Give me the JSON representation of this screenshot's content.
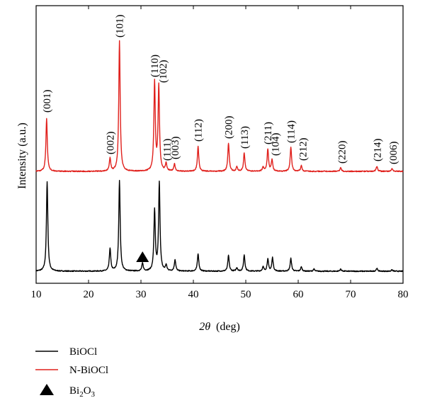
{
  "chart_data": {
    "type": "line",
    "xlabel_symbol": "2θ",
    "xlabel_unit": "(deg)",
    "ylabel": "Intensity (a.u.)",
    "xlim": [
      10,
      80
    ],
    "x_ticks": [
      10,
      20,
      30,
      40,
      50,
      60,
      70,
      80
    ],
    "colors": {
      "BiOCl": "#000000",
      "N-BiOCl": "#e0201c",
      "marker": "#000000"
    },
    "legend": {
      "placement": "below-chart",
      "entries": [
        {
          "name": "BiOCl",
          "type": "line",
          "color": "#000000"
        },
        {
          "name": "N-BiOCl",
          "type": "line",
          "color": "#e0201c"
        },
        {
          "name": "Bi",
          "sub": "2",
          "name_end": "O",
          "sub_end": "3",
          "type": "triangle",
          "color": "#000000"
        }
      ]
    },
    "series": [
      {
        "name": "BiOCl",
        "baseline": 0,
        "peaks": [
          {
            "x": 12.1,
            "h": 127
          },
          {
            "x": 24.1,
            "h": 32
          },
          {
            "x": 25.9,
            "h": 128
          },
          {
            "x": 30.3,
            "h": 11
          },
          {
            "x": 32.6,
            "h": 85
          },
          {
            "x": 33.5,
            "h": 124
          },
          {
            "x": 34.8,
            "h": 8
          },
          {
            "x": 36.5,
            "h": 16
          },
          {
            "x": 40.9,
            "h": 25
          },
          {
            "x": 46.7,
            "h": 22
          },
          {
            "x": 48.3,
            "h": 5
          },
          {
            "x": 49.7,
            "h": 23
          },
          {
            "x": 53.3,
            "h": 6
          },
          {
            "x": 54.2,
            "h": 17
          },
          {
            "x": 55.1,
            "h": 19
          },
          {
            "x": 58.6,
            "h": 18
          },
          {
            "x": 60.6,
            "h": 6
          },
          {
            "x": 63.0,
            "h": 3
          },
          {
            "x": 68.1,
            "h": 3
          },
          {
            "x": 75.0,
            "h": 4
          },
          {
            "x": 77.9,
            "h": 2
          }
        ]
      },
      {
        "name": "N-BiOCl",
        "baseline": 141,
        "peaks": [
          {
            "x": 12.0,
            "h": 74
          },
          {
            "x": 24.1,
            "h": 18
          },
          {
            "x": 25.9,
            "h": 184
          },
          {
            "x": 32.6,
            "h": 126
          },
          {
            "x": 33.4,
            "h": 120
          },
          {
            "x": 34.8,
            "h": 11
          },
          {
            "x": 36.4,
            "h": 10
          },
          {
            "x": 40.9,
            "h": 35
          },
          {
            "x": 46.7,
            "h": 40
          },
          {
            "x": 48.3,
            "h": 6
          },
          {
            "x": 49.7,
            "h": 26
          },
          {
            "x": 53.3,
            "h": 6
          },
          {
            "x": 54.2,
            "h": 31
          },
          {
            "x": 55.0,
            "h": 16
          },
          {
            "x": 58.6,
            "h": 34
          },
          {
            "x": 60.6,
            "h": 8
          },
          {
            "x": 68.1,
            "h": 5
          },
          {
            "x": 75.0,
            "h": 7
          },
          {
            "x": 77.9,
            "h": 4
          }
        ]
      }
    ],
    "peak_labels": [
      {
        "text": "(001)",
        "x": 12.0,
        "y": 224
      },
      {
        "text": "(002)",
        "x": 24.1,
        "y": 165
      },
      {
        "text": "(101)",
        "x": 25.9,
        "y": 330
      },
      {
        "text": "(110)",
        "x": 32.6,
        "y": 274
      },
      {
        "text": "(102)",
        "x": 34.2,
        "y": 266
      },
      {
        "text": "(111)",
        "x": 34.9,
        "y": 156
      },
      {
        "text": "(003)",
        "x": 36.5,
        "y": 158
      },
      {
        "text": "(112)",
        "x": 40.9,
        "y": 183
      },
      {
        "text": "(200)",
        "x": 46.7,
        "y": 187
      },
      {
        "text": "(113)",
        "x": 49.7,
        "y": 173
      },
      {
        "text": "(211)",
        "x": 54.2,
        "y": 179
      },
      {
        "text": "(104)",
        "x": 55.6,
        "y": 163
      },
      {
        "text": "(114)",
        "x": 58.6,
        "y": 181
      },
      {
        "text": "(212)",
        "x": 60.9,
        "y": 156
      },
      {
        "text": "(220)",
        "x": 68.3,
        "y": 152
      },
      {
        "text": "(214)",
        "x": 75.1,
        "y": 155
      },
      {
        "text": "(006)",
        "x": 78.1,
        "y": 151
      }
    ],
    "marker": {
      "type": "triangle",
      "x": 30.3,
      "y": 14
    }
  }
}
